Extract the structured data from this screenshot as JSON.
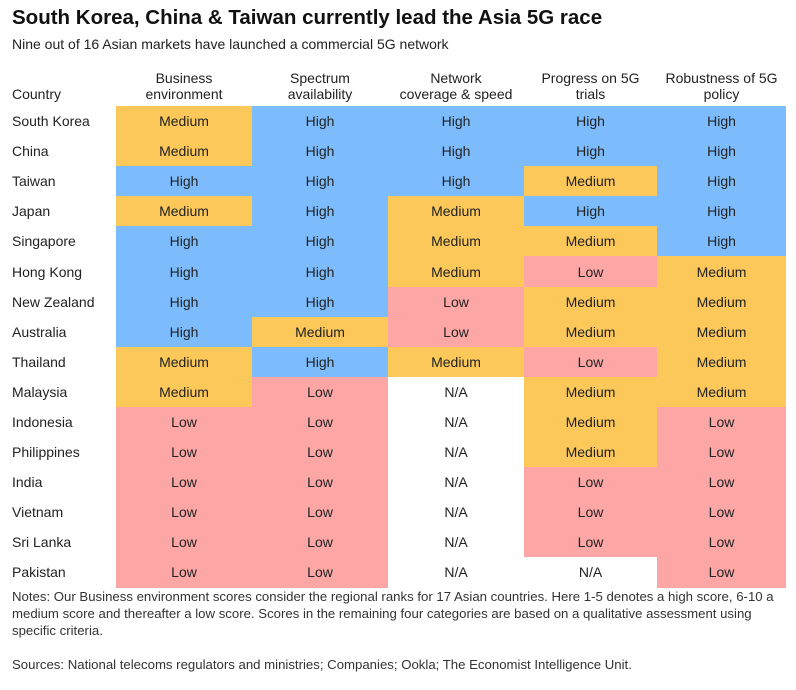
{
  "title": "South Korea, China & Taiwan currently lead the Asia 5G race",
  "subtitle": "Nine out of 16 Asian markets have launched a commercial 5G network",
  "notes": "Notes: Our Business environment scores consider the regional ranks for 17 Asian countries. Here 1-5 denotes a high score, 6-10 a medium score and thereafter a low score. Scores in the remaining four categories are based on a qualitative assessment using specific criteria.",
  "sources": "Sources: National telecoms regulators and ministries; Companies; Ookla; The Economist Intelligence Unit.",
  "colors": {
    "High": "#7dbcfc",
    "Medium": "#fcc85a",
    "Low": "#fca7a6",
    "N/A": "#ffffff"
  },
  "chart_data": {
    "type": "table",
    "columns": [
      {
        "line1": "Country",
        "line2": ""
      },
      {
        "line1": "Business",
        "line2": "environment"
      },
      {
        "line1": "Spectrum",
        "line2": "availability"
      },
      {
        "line1": "Network",
        "line2": "coverage & speed"
      },
      {
        "line1": "Progress on 5G",
        "line2": "trials"
      },
      {
        "line1": "Robustness of 5G",
        "line2": "policy"
      }
    ],
    "rows": [
      {
        "country": "South Korea",
        "values": [
          "Medium",
          "High",
          "High",
          "High",
          "High"
        ]
      },
      {
        "country": "China",
        "values": [
          "Medium",
          "High",
          "High",
          "High",
          "High"
        ]
      },
      {
        "country": "Taiwan",
        "values": [
          "High",
          "High",
          "High",
          "Medium",
          "High"
        ]
      },
      {
        "country": "Japan",
        "values": [
          "Medium",
          "High",
          "Medium",
          "High",
          "High"
        ]
      },
      {
        "country": "Singapore",
        "values": [
          "High",
          "High",
          "Medium",
          "Medium",
          "High"
        ]
      },
      {
        "country": "Hong Kong",
        "values": [
          "High",
          "High",
          "Medium",
          "Low",
          "Medium"
        ]
      },
      {
        "country": "New Zealand",
        "values": [
          "High",
          "High",
          "Low",
          "Medium",
          "Medium"
        ]
      },
      {
        "country": "Australia",
        "values": [
          "High",
          "Medium",
          "Low",
          "Medium",
          "Medium"
        ]
      },
      {
        "country": "Thailand",
        "values": [
          "Medium",
          "High",
          "Medium",
          "Low",
          "Medium"
        ]
      },
      {
        "country": "Malaysia",
        "values": [
          "Medium",
          "Low",
          "N/A",
          "Medium",
          "Medium"
        ]
      },
      {
        "country": "Indonesia",
        "values": [
          "Low",
          "Low",
          "N/A",
          "Medium",
          "Low"
        ]
      },
      {
        "country": "Philippines",
        "values": [
          "Low",
          "Low",
          "N/A",
          "Medium",
          "Low"
        ]
      },
      {
        "country": "India",
        "values": [
          "Low",
          "Low",
          "N/A",
          "Low",
          "Low"
        ]
      },
      {
        "country": "Vietnam",
        "values": [
          "Low",
          "Low",
          "N/A",
          "Low",
          "Low"
        ]
      },
      {
        "country": "Sri Lanka",
        "values": [
          "Low",
          "Low",
          "N/A",
          "Low",
          "Low"
        ]
      },
      {
        "country": "Pakistan",
        "values": [
          "Low",
          "Low",
          "N/A",
          "N/A",
          "Low"
        ]
      }
    ]
  }
}
